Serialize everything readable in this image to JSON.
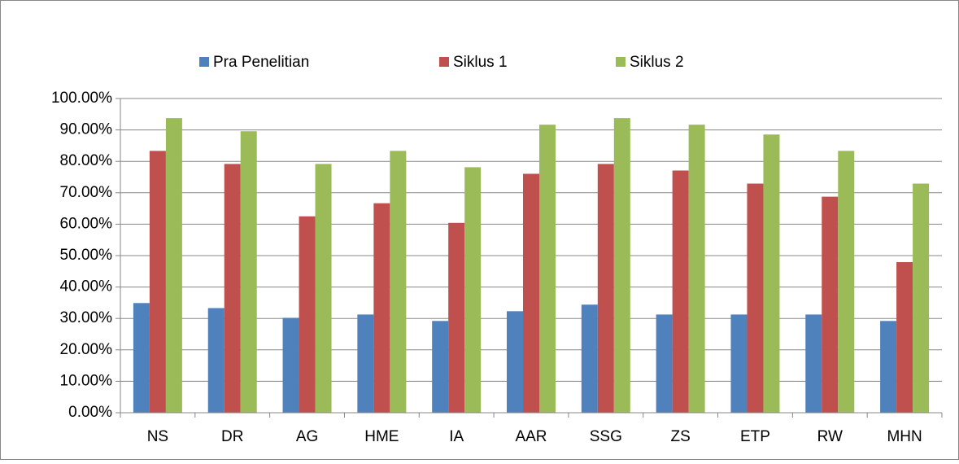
{
  "chart_data": {
    "type": "bar",
    "categories": [
      "NS",
      "DR",
      "AG",
      "HME",
      "IA",
      "AAR",
      "SSG",
      "ZS",
      "ETP",
      "RW",
      "MHN"
    ],
    "series": [
      {
        "name": "Pra Penelitian",
        "color": "#4f81bd",
        "values": [
          34.9,
          33.3,
          30.2,
          31.25,
          29.2,
          32.3,
          34.4,
          31.25,
          31.25,
          31.25,
          29.2
        ]
      },
      {
        "name": "Siklus 1",
        "color": "#c0504d",
        "values": [
          83.33,
          79.17,
          62.5,
          66.67,
          60.42,
          76.04,
          79.17,
          77.08,
          72.92,
          68.75,
          47.92
        ]
      },
      {
        "name": "Siklus 2",
        "color": "#9bbb59",
        "values": [
          93.75,
          89.58,
          79.17,
          83.33,
          78.13,
          91.67,
          93.75,
          91.67,
          88.54,
          83.33,
          72.92
        ]
      }
    ],
    "ylim": [
      0,
      100
    ],
    "yticks": [
      {
        "value": 0,
        "label": "0.00%"
      },
      {
        "value": 10,
        "label": "10.00%"
      },
      {
        "value": 20,
        "label": "20.00%"
      },
      {
        "value": 30,
        "label": "30.00%"
      },
      {
        "value": 40,
        "label": "40.00%"
      },
      {
        "value": 50,
        "label": "50.00%"
      },
      {
        "value": 60,
        "label": "60.00%"
      },
      {
        "value": 70,
        "label": "70.00%"
      },
      {
        "value": 80,
        "label": "80.00%"
      },
      {
        "value": 90,
        "label": "90.00%"
      },
      {
        "value": 100,
        "label": "100.00%"
      }
    ],
    "grid": true,
    "legend": "top"
  }
}
